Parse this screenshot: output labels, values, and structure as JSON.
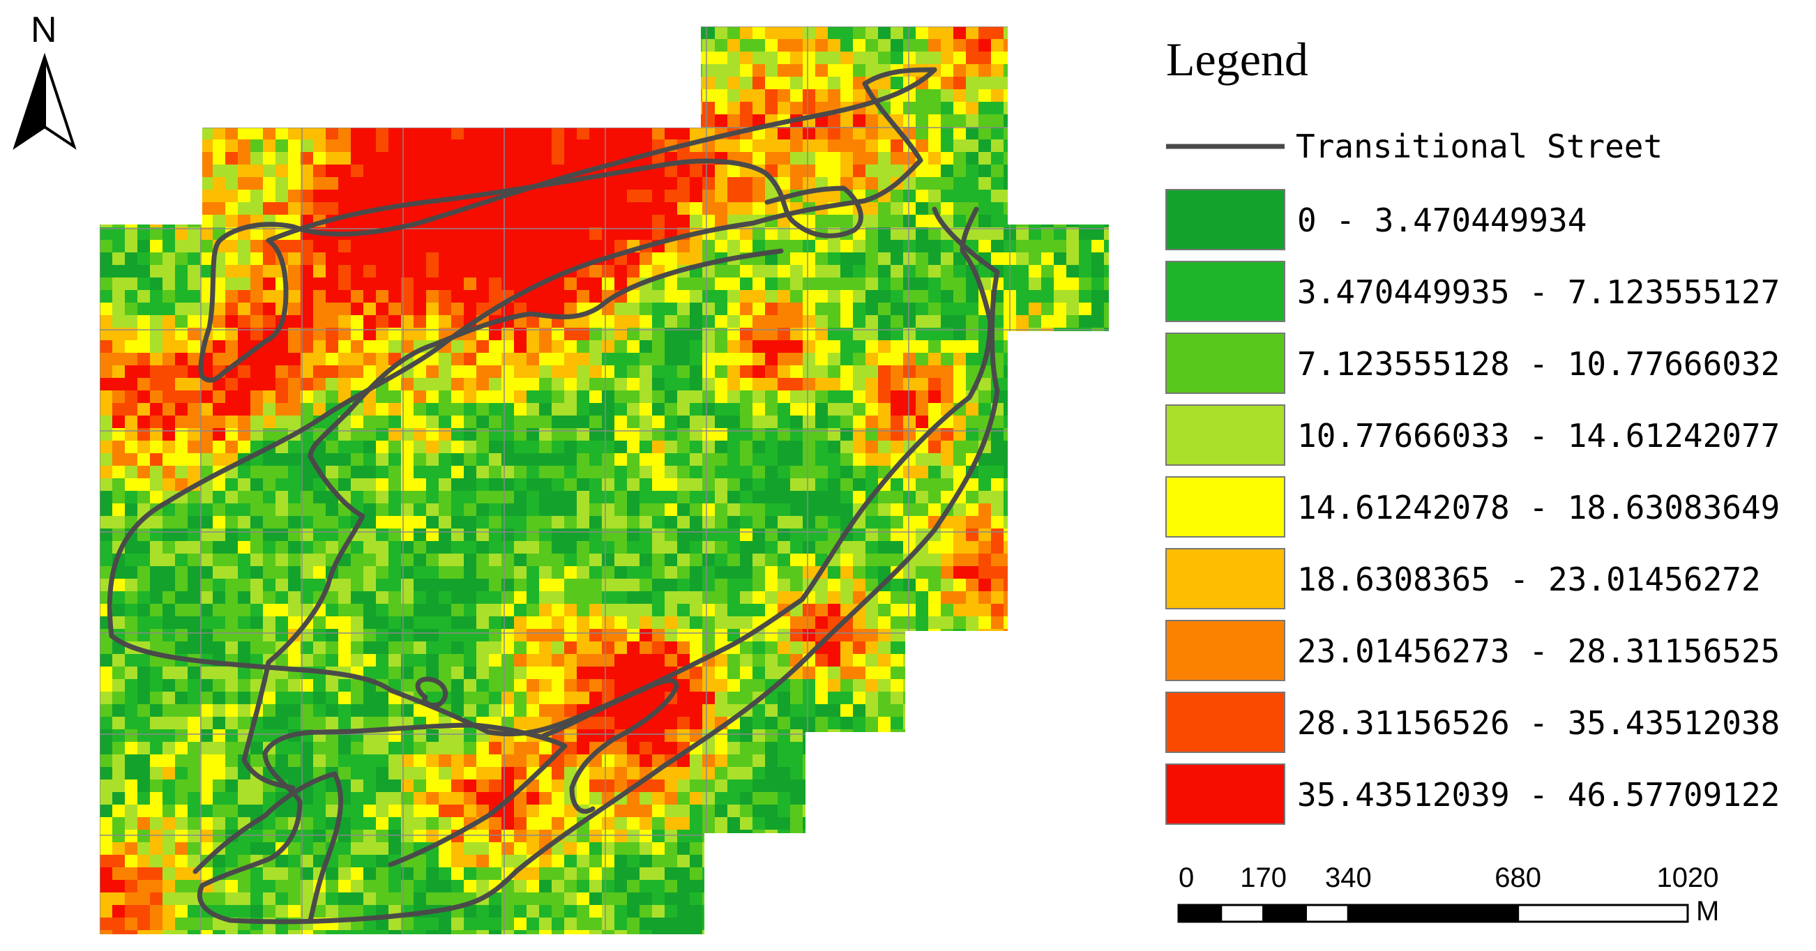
{
  "north_arrow": {
    "label": "N"
  },
  "legend": {
    "title": "Legend",
    "line_item": {
      "label": "Transitional Street",
      "color": "#4a4a4a"
    },
    "classes": [
      {
        "label": "0 - 3.470449934",
        "color": "#13a32c"
      },
      {
        "label": "3.470449935 - 7.123555127",
        "color": "#1fb52a"
      },
      {
        "label": "7.123555128 - 10.77666032",
        "color": "#59c81c"
      },
      {
        "label": "10.77666033 - 14.61242077",
        "color": "#aae02a"
      },
      {
        "label": "14.61242078 - 18.63083649",
        "color": "#fefe00"
      },
      {
        "label": "18.6308365 - 23.01456272",
        "color": "#fdbd00"
      },
      {
        "label": "23.01456273 - 28.31156525",
        "color": "#fb8200"
      },
      {
        "label": "28.31156526 - 35.43512038",
        "color": "#fa4a00"
      },
      {
        "label": "35.43512039 - 46.57709122",
        "color": "#f60d00"
      }
    ]
  },
  "scale_bar": {
    "ticks": [
      "0",
      "170",
      "340",
      "680",
      "1020"
    ],
    "tick_values": [
      0,
      170,
      340,
      680,
      1020
    ],
    "unit": "M"
  }
}
